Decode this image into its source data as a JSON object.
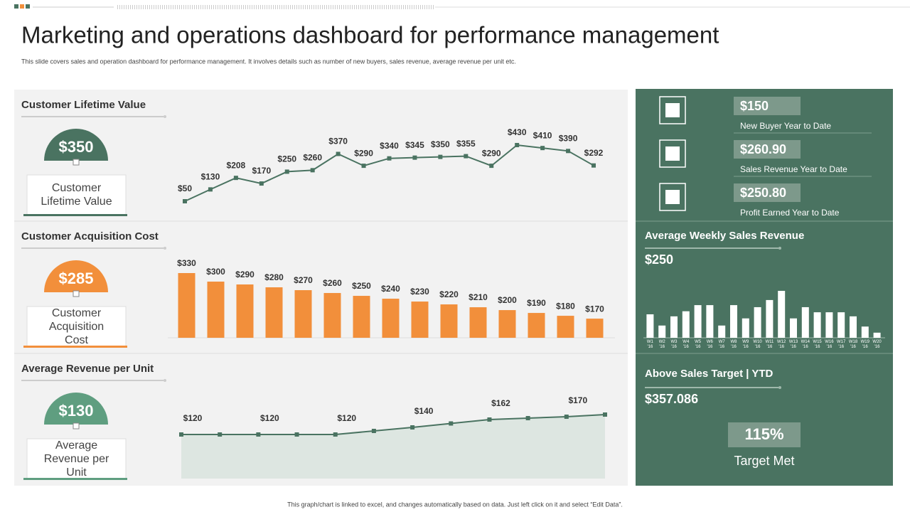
{
  "title": "Marketing and operations dashboard for performance management",
  "subtitle": "This slide covers  sales and operation dashboard for performance management.  It involves details such as number  of new buyers, sales revenue, average revenue per unit etc.",
  "footer": "This graph/chart is linked to excel, and changes automatically based on data. Just left click on it and select “Edit Data”.",
  "chart_data": [
    {
      "type": "line",
      "title": "Customer Lifetime Value",
      "kpi_value": "$350",
      "kpi_label": "Customer Lifetime Value",
      "color": "#4a7361",
      "values": [
        50,
        130,
        208,
        170,
        250,
        260,
        370,
        290,
        340,
        345,
        350,
        355,
        290,
        430,
        410,
        390,
        292
      ],
      "value_labels": [
        "$50",
        "$130",
        "$208",
        "$170",
        "$250",
        "$260",
        "$370",
        "$290",
        "$340",
        "$345",
        "$350",
        "$355",
        "$290",
        "$430",
        "$410",
        "$390",
        "$292"
      ]
    },
    {
      "type": "bar",
      "title": "Customer Acquisition Cost",
      "kpi_value": "$285",
      "kpi_label": "Customer Acquisition Cost",
      "color": "#f28f3b",
      "values": [
        330,
        300,
        290,
        280,
        270,
        260,
        250,
        240,
        230,
        220,
        210,
        200,
        190,
        180,
        170
      ],
      "value_labels": [
        "$330",
        "$300",
        "$290",
        "$280",
        "$270",
        "$260",
        "$250",
        "$240",
        "$230",
        "$220",
        "$210",
        "$200",
        "$190",
        "$180",
        "$170"
      ]
    },
    {
      "type": "area",
      "title": "Average Revenue per Unit",
      "kpi_value": "$130",
      "kpi_label": "Average Revenue  per Unit",
      "color": "#4a7361",
      "values": [
        120,
        120,
        120,
        120,
        120,
        130,
        140,
        151,
        162,
        166,
        170,
        176
      ],
      "value_labels": [
        "$120",
        null,
        "$120",
        null,
        "$120",
        null,
        "$140",
        null,
        "$162",
        null,
        "$170",
        null
      ]
    },
    {
      "type": "weekly",
      "title": "Average Weekly Sales Revenue",
      "headline": "$250",
      "color": "#ffffff",
      "categories": [
        "W1 '16",
        "W2 '16",
        "W3 '16",
        "W4 '16",
        "W5 '16",
        "W6 '16",
        "W7 '16",
        "W8 '16",
        "W9 '16",
        "W10 '16",
        "W11 '16",
        "W12 '16",
        "W13 '16",
        "W14 '16",
        "W15 '16",
        "W16 '16",
        "W17 '16",
        "W18 '16",
        "W19 '16",
        "W20 '16"
      ],
      "values": [
        230,
        120,
        210,
        260,
        320,
        320,
        120,
        320,
        190,
        300,
        370,
        460,
        190,
        300,
        250,
        250,
        250,
        210,
        110,
        50
      ]
    }
  ],
  "summary": [
    {
      "value": "$150",
      "label": "New Buyer Year to Date"
    },
    {
      "value": "$260.90",
      "label": "Sales Revenue  Year to Date"
    },
    {
      "value": "$250.80",
      "label": "Profit Earned Year to Date"
    }
  ],
  "target": {
    "title": "Above Sales Target | YTD",
    "value": "$357.086",
    "percent": "115%",
    "label": "Target Met"
  }
}
